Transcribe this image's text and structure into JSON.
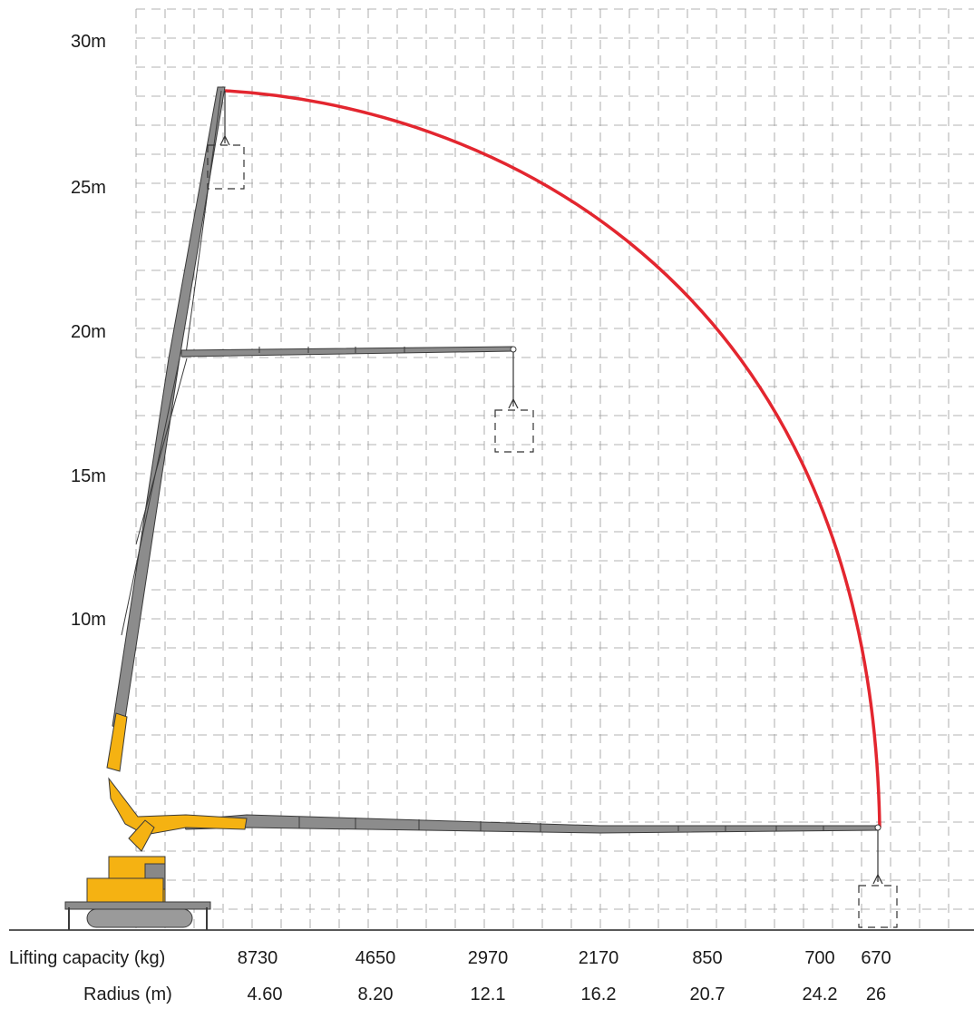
{
  "y_axis": {
    "labels": [
      {
        "text": "30m",
        "value": 30
      },
      {
        "text": "25m",
        "value": 25
      },
      {
        "text": "20m",
        "value": 20
      },
      {
        "text": "15m",
        "value": 15
      },
      {
        "text": "10m",
        "value": 10
      }
    ]
  },
  "table": {
    "capacity_label": "Lifting capacity (kg)",
    "radius_label": "Radius (m)",
    "capacity": [
      "8730",
      "4650",
      "2970",
      "2170",
      "850",
      "700",
      "670"
    ],
    "radius": [
      "4.60",
      "8.20",
      "12.1",
      "16.2",
      "20.7",
      "24.2",
      "26"
    ]
  },
  "colors": {
    "envelope": "#e3262f",
    "crane_body": "#f5b212",
    "boom": "#8c8c8c",
    "grid": "#9a9a9a"
  }
}
